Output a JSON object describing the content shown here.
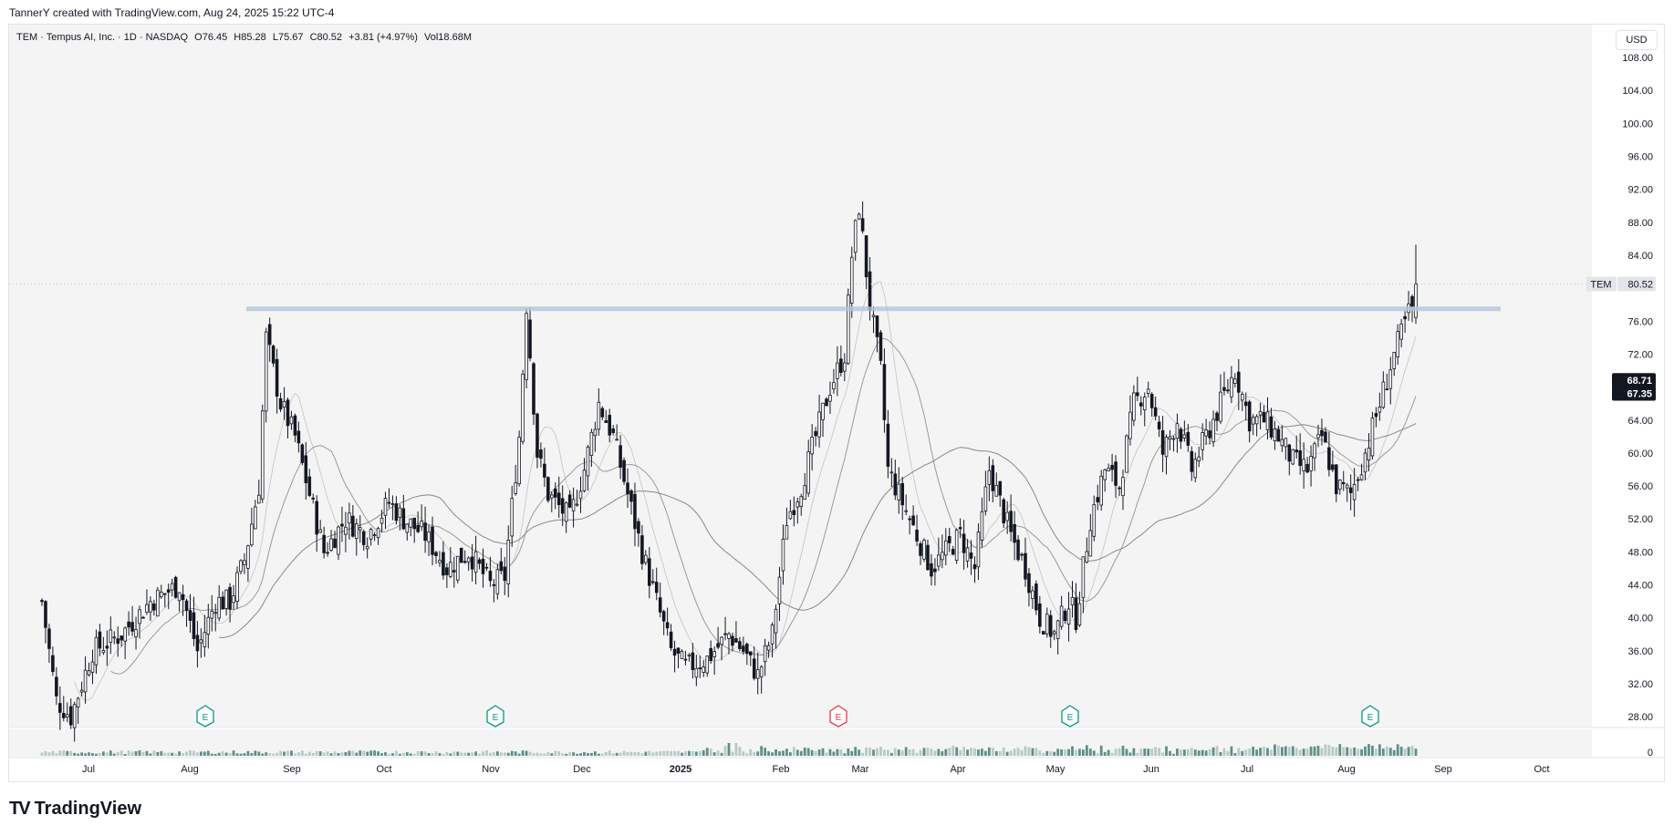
{
  "header": {
    "credit": "TannerY created with TradingView.com, Aug 24, 2025 15:22 UTC-4"
  },
  "legend": {
    "symbol": "TEM · Tempus AI, Inc. · 1D · NASDAQ",
    "open": "O76.45",
    "high": "H85.28",
    "low": "L75.67",
    "close": "C80.52",
    "change": "+3.81 (+4.97%)",
    "volume": "Vol18.68M"
  },
  "currency_button": "USD",
  "price_axis": {
    "labels": [
      "108.00",
      "104.00",
      "100.00",
      "96.00",
      "92.00",
      "88.00",
      "84.00",
      "76.00",
      "72.00",
      "64.00",
      "60.00",
      "56.00",
      "52.00",
      "48.00",
      "44.00",
      "40.00",
      "36.00",
      "32.00",
      "28.00"
    ],
    "volume_label": "0"
  },
  "time_axis": {
    "labels": [
      "Jul",
      "Aug",
      "Sep",
      "Oct",
      "Nov",
      "Dec",
      "2025",
      "Feb",
      "Mar",
      "Apr",
      "May",
      "Jun",
      "Jul",
      "Aug",
      "Sep",
      "Oct"
    ]
  },
  "price_tags": {
    "symbol_tag": "TEM",
    "last_price": "80.52",
    "ma1": "68.71",
    "ma2": "67.35"
  },
  "earnings_markers": [
    "E",
    "E",
    "E",
    "E",
    "E"
  ],
  "brand": {
    "name": "TradingView",
    "logo": "TV"
  },
  "colors": {
    "candle": "#131722",
    "background": "#f4f4f4",
    "level_line": "#b2c5dc",
    "ma_fast": "#c8c8c8",
    "ma_mid": "#9a9a9a",
    "ma_slow": "#888888",
    "earnings_ok": "#089981",
    "earnings_miss": "#f23645",
    "volume": "#5b8f87"
  },
  "chart_data": {
    "type": "candlestick",
    "symbol": "TEM",
    "interval": "1D",
    "ylim": [
      28,
      108
    ],
    "resistance_level": 77.5,
    "last_close": 80.52,
    "ma_values": [
      68.71,
      67.35
    ],
    "monthly_points": [
      {
        "month": "Jun 2024",
        "low": 27,
        "high": 44
      },
      {
        "month": "Jul 2024",
        "low": 30,
        "high": 44
      },
      {
        "month": "Aug 2024",
        "low": 33,
        "high": 77
      },
      {
        "month": "Sep 2024",
        "low": 45,
        "high": 57
      },
      {
        "month": "Oct 2024",
        "low": 42,
        "high": 57
      },
      {
        "month": "Nov 2024",
        "low": 40,
        "high": 80
      },
      {
        "month": "Dec 2024",
        "low": 36,
        "high": 70
      },
      {
        "month": "Jan 2025",
        "low": 32,
        "high": 66
      },
      {
        "month": "Feb 2025",
        "low": 49,
        "high": 91
      },
      {
        "month": "Mar 2025",
        "low": 42,
        "high": 62
      },
      {
        "month": "Apr 2025",
        "low": 36,
        "high": 56
      },
      {
        "month": "May 2025",
        "low": 49,
        "high": 72
      },
      {
        "month": "Jun 2025",
        "low": 53,
        "high": 75
      },
      {
        "month": "Jul 2025",
        "low": 56,
        "high": 71
      },
      {
        "month": "Aug 2025",
        "low": 54,
        "high": 85
      }
    ]
  }
}
